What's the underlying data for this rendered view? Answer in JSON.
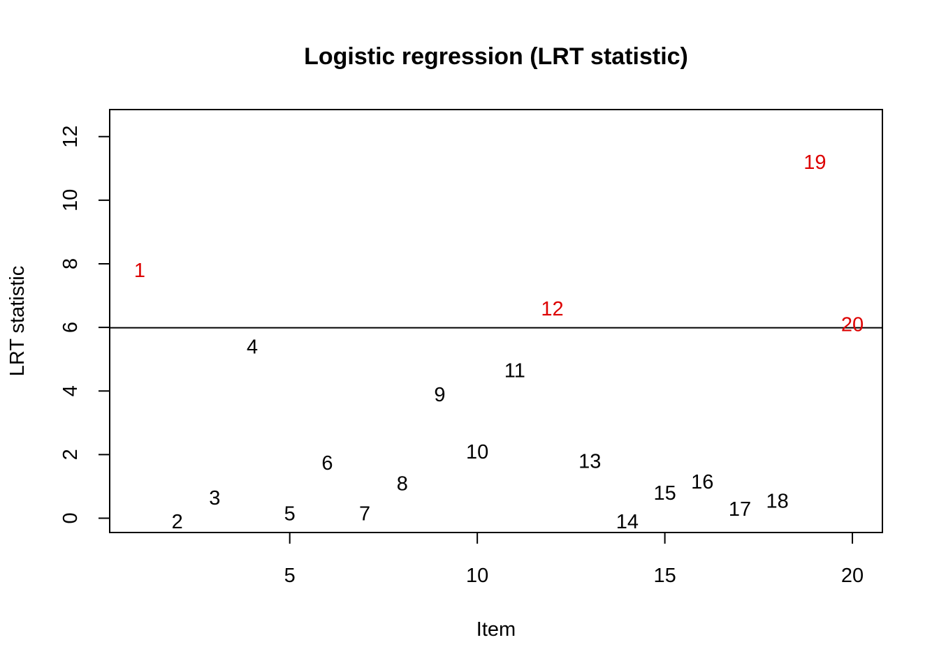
{
  "chart_data": {
    "type": "scatter",
    "title": "Logistic regression (LRT statistic)",
    "xlabel": "Item",
    "ylabel": "LRT statistic",
    "xlim": [
      0.2,
      20.8
    ],
    "ylim": [
      -0.45,
      12.85
    ],
    "xticks": [
      5,
      10,
      15,
      20
    ],
    "yticks": [
      0,
      2,
      4,
      6,
      8,
      10,
      12
    ],
    "threshold": 5.99,
    "grid": false,
    "legend": "none",
    "points": [
      {
        "label": "1",
        "x": 1,
        "y": 7.8,
        "flagged": true
      },
      {
        "label": "2",
        "x": 2,
        "y": -0.1,
        "flagged": false
      },
      {
        "label": "3",
        "x": 3,
        "y": 0.65,
        "flagged": false
      },
      {
        "label": "4",
        "x": 4,
        "y": 5.4,
        "flagged": false
      },
      {
        "label": "5",
        "x": 5,
        "y": 0.15,
        "flagged": false
      },
      {
        "label": "6",
        "x": 6,
        "y": 1.75,
        "flagged": false
      },
      {
        "label": "7",
        "x": 7,
        "y": 0.15,
        "flagged": false
      },
      {
        "label": "8",
        "x": 8,
        "y": 1.1,
        "flagged": false
      },
      {
        "label": "9",
        "x": 9,
        "y": 3.9,
        "flagged": false
      },
      {
        "label": "10",
        "x": 10,
        "y": 2.1,
        "flagged": false
      },
      {
        "label": "11",
        "x": 11,
        "y": 4.65,
        "flagged": false
      },
      {
        "label": "12",
        "x": 12,
        "y": 6.6,
        "flagged": true
      },
      {
        "label": "13",
        "x": 13,
        "y": 1.8,
        "flagged": false
      },
      {
        "label": "14",
        "x": 14,
        "y": -0.1,
        "flagged": false
      },
      {
        "label": "15",
        "x": 15,
        "y": 0.8,
        "flagged": false
      },
      {
        "label": "16",
        "x": 16,
        "y": 1.15,
        "flagged": false
      },
      {
        "label": "17",
        "x": 17,
        "y": 0.3,
        "flagged": false
      },
      {
        "label": "18",
        "x": 18,
        "y": 0.55,
        "flagged": false
      },
      {
        "label": "19",
        "x": 19,
        "y": 11.2,
        "flagged": true
      },
      {
        "label": "20",
        "x": 20,
        "y": 6.1,
        "flagged": true
      }
    ],
    "colors": {
      "flagged": "#dd0000",
      "normal": "#000000",
      "axis": "#000000"
    }
  }
}
